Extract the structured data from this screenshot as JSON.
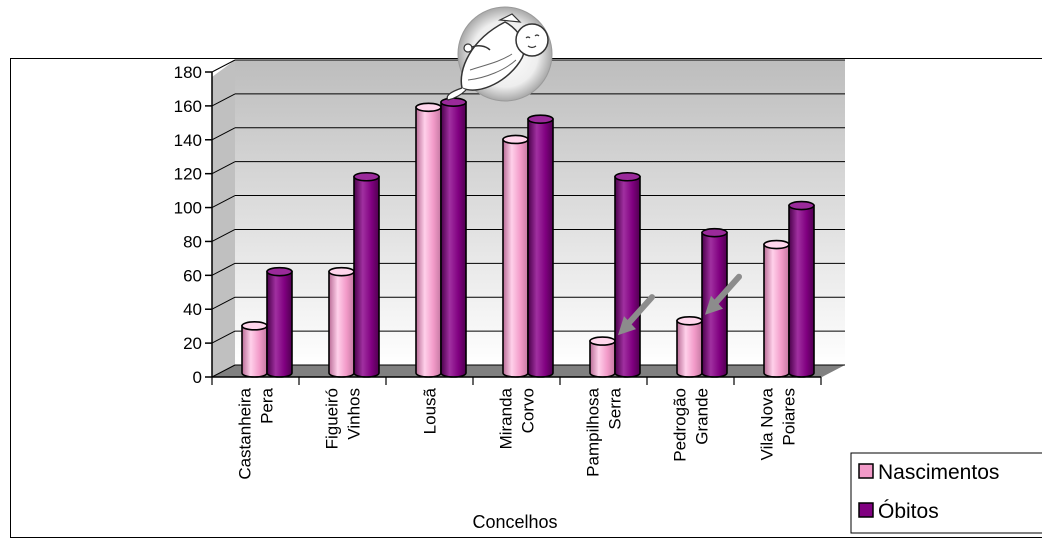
{
  "chart_data": {
    "type": "bar",
    "title": "",
    "xlabel": "Concelhos",
    "ylabel": "",
    "ylim": [
      0,
      180
    ],
    "yticks": [
      0,
      20,
      40,
      60,
      80,
      100,
      120,
      140,
      160,
      180
    ],
    "grid": true,
    "legend_position": "bottom-right",
    "categories": [
      [
        "Castanheira",
        "Pera"
      ],
      [
        "Figueiró",
        "Vinhos"
      ],
      [
        "Lousã"
      ],
      [
        "Miranda",
        "Corvo"
      ],
      [
        "Pampilhosa",
        "Serra"
      ],
      [
        "Pedrogão",
        "Grande"
      ],
      [
        "Vila Nova",
        "Poiares"
      ]
    ],
    "series": [
      {
        "name": "Nascimentos",
        "color": "#f29ac8",
        "values": [
          29,
          61,
          158,
          139,
          20,
          32,
          77
        ]
      },
      {
        "name": "Óbitos",
        "color": "#800080",
        "values": [
          61,
          117,
          161,
          151,
          117,
          84,
          100
        ]
      }
    ],
    "annotations": [
      {
        "type": "arrow",
        "category_index": 4,
        "series_index": 0,
        "icon": "gray-arrow-icon"
      },
      {
        "type": "arrow",
        "category_index": 5,
        "series_index": 0,
        "icon": "gray-arrow-icon"
      }
    ],
    "decoration_icon": "baby-in-sling-icon"
  }
}
